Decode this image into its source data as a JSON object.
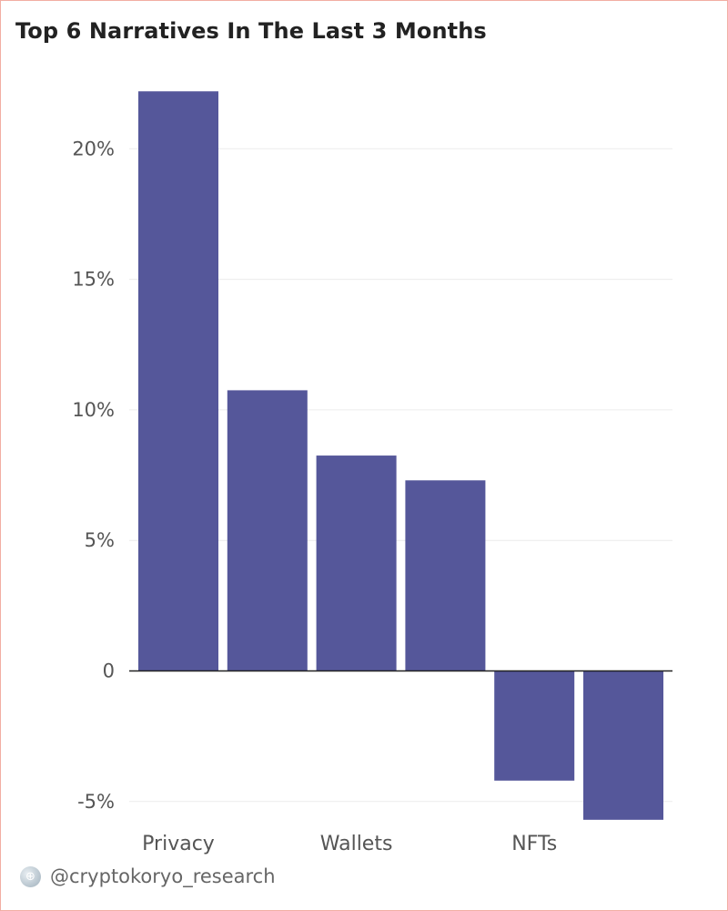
{
  "page": {
    "title": "Top 6 Narratives In The Last 3 Months",
    "footer_handle": "@cryptokoryo_research"
  },
  "chart_data": {
    "type": "bar",
    "categories": [
      "Privacy",
      "",
      "Wallets",
      "",
      "NFTs",
      ""
    ],
    "values": [
      22.2,
      10.75,
      8.25,
      7.3,
      -4.2,
      -5.7
    ],
    "ylim": [
      -6.0,
      24.0
    ],
    "yticks": [
      -5,
      0,
      5,
      10,
      15,
      20
    ],
    "ytick_labels": [
      "-5%",
      "0",
      "5%",
      "10%",
      "15%",
      "20%"
    ],
    "bar_color": "#55579a",
    "grid": true,
    "title": "Top 6 Narratives In The Last 3 Months",
    "xlabel": "",
    "ylabel": ""
  }
}
